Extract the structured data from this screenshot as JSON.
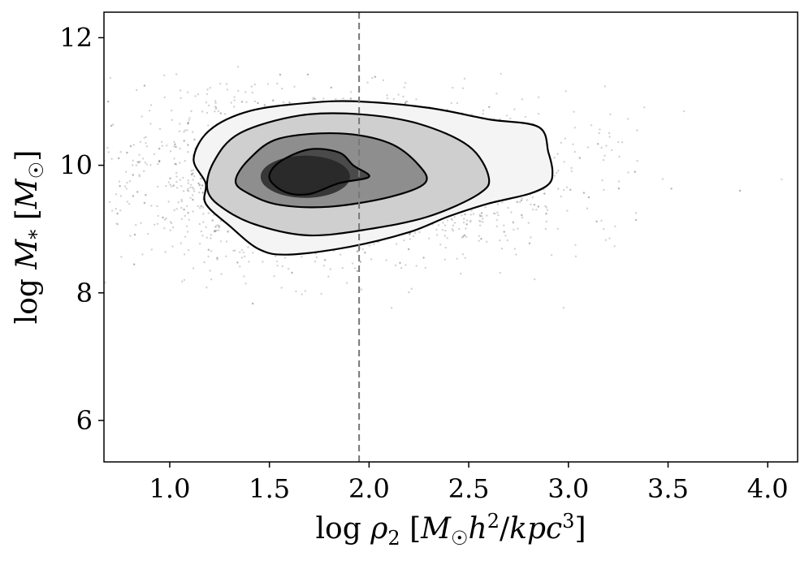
{
  "chart_data": {
    "type": "scatter",
    "title": "",
    "xlabel": "log ρ₂ [M☉ h²/kpc³]",
    "ylabel": "log M* [M☉]",
    "xlim": [
      0.67,
      4.15
    ],
    "ylim": [
      5.35,
      12.4
    ],
    "xticks": [
      1.0,
      1.5,
      2.0,
      2.5,
      3.0,
      3.5,
      4.0
    ],
    "xtick_labels": [
      "1.0",
      "1.5",
      "2.0",
      "2.5",
      "3.0",
      "3.5",
      "4.0"
    ],
    "yticks": [
      6,
      8,
      10,
      12
    ],
    "ytick_labels": [
      "6",
      "8",
      "10",
      "12"
    ],
    "grid": false,
    "legend": "none",
    "reference_line": {
      "orientation": "vertical",
      "x": 1.95,
      "style": "dashed",
      "color": "#777777"
    },
    "scatter_color": "#7f7f7f",
    "density": {
      "peak": [
        1.68,
        9.82
      ],
      "contour_levels": [
        {
          "level": 1,
          "points": [
            [
              1.18,
              9.72
            ],
            [
              1.12,
              10.1
            ],
            [
              1.2,
              10.55
            ],
            [
              1.4,
              10.85
            ],
            [
              1.7,
              10.98
            ],
            [
              1.95,
              11.0
            ],
            [
              2.3,
              10.9
            ],
            [
              2.6,
              10.72
            ],
            [
              2.85,
              10.6
            ],
            [
              2.9,
              10.2
            ],
            [
              2.92,
              9.9
            ],
            [
              2.9,
              9.7
            ],
            [
              2.8,
              9.55
            ],
            [
              2.6,
              9.4
            ],
            [
              2.4,
              9.2
            ],
            [
              2.2,
              8.95
            ],
            [
              1.9,
              8.72
            ],
            [
              1.6,
              8.6
            ],
            [
              1.45,
              8.68
            ],
            [
              1.3,
              9.05
            ],
            [
              1.18,
              9.4
            ]
          ]
        },
        {
          "level": 2,
          "points": [
            [
              1.19,
              9.6
            ],
            [
              1.22,
              10.05
            ],
            [
              1.35,
              10.5
            ],
            [
              1.65,
              10.78
            ],
            [
              1.95,
              10.8
            ],
            [
              2.25,
              10.65
            ],
            [
              2.5,
              10.3
            ],
            [
              2.6,
              9.82
            ],
            [
              2.55,
              9.55
            ],
            [
              2.3,
              9.2
            ],
            [
              2.0,
              9.0
            ],
            [
              1.7,
              8.9
            ],
            [
              1.45,
              9.05
            ],
            [
              1.28,
              9.3
            ]
          ]
        },
        {
          "level": 3,
          "points": [
            [
              1.33,
              9.75
            ],
            [
              1.4,
              10.1
            ],
            [
              1.55,
              10.42
            ],
            [
              1.85,
              10.5
            ],
            [
              2.1,
              10.35
            ],
            [
              2.25,
              10.0
            ],
            [
              2.28,
              9.72
            ],
            [
              2.1,
              9.5
            ],
            [
              1.8,
              9.35
            ],
            [
              1.55,
              9.38
            ],
            [
              1.4,
              9.55
            ]
          ]
        },
        {
          "level": 4,
          "points": [
            [
              1.5,
              9.8
            ],
            [
              1.55,
              10.05
            ],
            [
              1.7,
              10.25
            ],
            [
              1.85,
              10.2
            ],
            [
              1.92,
              10.0
            ],
            [
              2.0,
              9.82
            ],
            [
              1.85,
              9.72
            ],
            [
              1.7,
              9.55
            ],
            [
              1.58,
              9.58
            ]
          ]
        }
      ]
    }
  }
}
